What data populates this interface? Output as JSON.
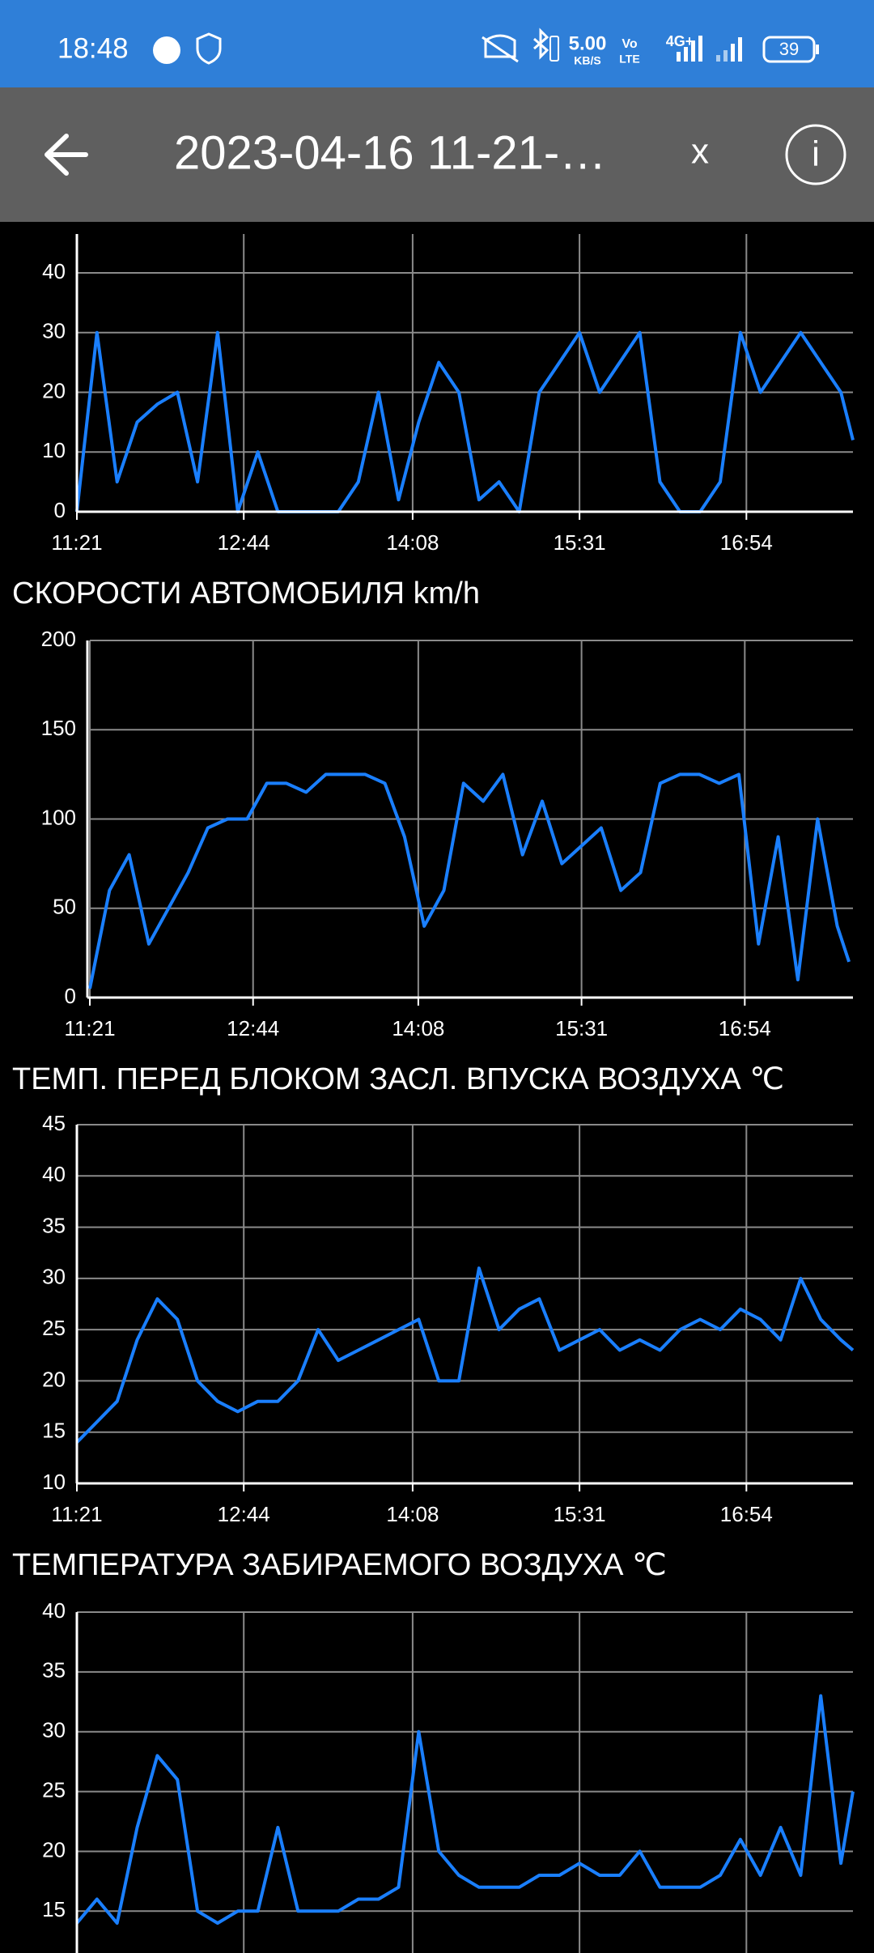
{
  "status_bar": {
    "time": "18:48",
    "speed": "5.00",
    "speed_unit": "KB/S",
    "volte_top": "Vo",
    "volte_bottom": "LTE",
    "network": "4G+",
    "battery": "39"
  },
  "toolbar": {
    "title": "2023-04-16 11-21-…",
    "close": "x",
    "info": "i"
  },
  "chart_data": [
    {
      "type": "line",
      "color": "#1a7fff",
      "x": [
        "11:21",
        "11:31",
        "11:41",
        "11:51",
        "12:01",
        "12:11",
        "12:21",
        "12:31",
        "12:41",
        "12:51",
        "13:01",
        "13:11",
        "13:21",
        "13:31",
        "13:41",
        "13:51",
        "14:01",
        "14:11",
        "14:21",
        "14:31",
        "14:41",
        "14:51",
        "15:01",
        "15:11",
        "15:21",
        "15:31",
        "15:41",
        "15:51",
        "16:01",
        "16:11",
        "16:21",
        "16:31",
        "16:41",
        "16:51",
        "17:01",
        "17:11",
        "17:21",
        "17:31",
        "17:41",
        "17:47"
      ],
      "values": [
        0,
        30,
        5,
        15,
        18,
        20,
        5,
        30,
        0,
        10,
        0,
        0,
        0,
        0,
        5,
        20,
        2,
        15,
        25,
        20,
        2,
        5,
        0,
        20,
        25,
        30,
        20,
        25,
        30,
        5,
        0,
        0,
        5,
        30,
        20,
        25,
        30,
        25,
        20,
        12
      ],
      "xlim": [
        "11:21",
        "17:47"
      ],
      "xticks": [
        "11:21",
        "12:44",
        "14:08",
        "15:31",
        "16:54"
      ],
      "ylim": [
        0,
        46.5
      ],
      "yticks": [
        0,
        10,
        20,
        30,
        40
      ]
    },
    {
      "type": "line",
      "title": "СКОРОСТИ АВТОМОБИЛЯ  km/h",
      "color": "#1a7fff",
      "x": [
        "11:21",
        "11:31",
        "11:41",
        "11:51",
        "12:01",
        "12:11",
        "12:21",
        "12:31",
        "12:41",
        "12:51",
        "13:01",
        "13:11",
        "13:21",
        "13:31",
        "13:41",
        "13:51",
        "14:01",
        "14:11",
        "14:21",
        "14:31",
        "14:41",
        "14:51",
        "15:01",
        "15:11",
        "15:21",
        "15:31",
        "15:41",
        "15:51",
        "16:01",
        "16:11",
        "16:21",
        "16:31",
        "16:41",
        "16:51",
        "17:01",
        "17:11",
        "17:21",
        "17:31",
        "17:41",
        "17:47"
      ],
      "values": [
        5,
        60,
        80,
        30,
        50,
        70,
        95,
        100,
        100,
        120,
        120,
        115,
        125,
        125,
        125,
        120,
        90,
        40,
        60,
        120,
        110,
        125,
        80,
        110,
        75,
        85,
        95,
        60,
        70,
        120,
        125,
        125,
        120,
        125,
        30,
        90,
        10,
        100,
        40,
        20
      ],
      "xlim": [
        "11:21",
        "17:49"
      ],
      "xticks": [
        "11:21",
        "12:44",
        "14:08",
        "15:31",
        "16:54"
      ],
      "ylim": [
        0,
        200
      ],
      "yticks": [
        0,
        50,
        100,
        150,
        200
      ]
    },
    {
      "type": "line",
      "title": "ТЕМП. ПЕРЕД БЛОКОМ ЗАСЛ. ВПУСКА ВОЗДУХА  ℃",
      "color": "#1a7fff",
      "x": [
        "11:21",
        "11:31",
        "11:41",
        "11:51",
        "12:01",
        "12:11",
        "12:21",
        "12:31",
        "12:41",
        "12:51",
        "13:01",
        "13:11",
        "13:21",
        "13:31",
        "13:41",
        "13:51",
        "14:01",
        "14:11",
        "14:21",
        "14:31",
        "14:41",
        "14:51",
        "15:01",
        "15:11",
        "15:21",
        "15:31",
        "15:41",
        "15:51",
        "16:01",
        "16:11",
        "16:21",
        "16:31",
        "16:41",
        "16:51",
        "17:01",
        "17:11",
        "17:21",
        "17:31",
        "17:41",
        "17:47"
      ],
      "values": [
        14,
        16,
        18,
        24,
        28,
        26,
        20,
        18,
        17,
        18,
        18,
        20,
        25,
        22,
        23,
        24,
        25,
        26,
        20,
        20,
        31,
        25,
        27,
        28,
        23,
        24,
        25,
        23,
        24,
        23,
        25,
        26,
        25,
        27,
        26,
        24,
        30,
        26,
        24,
        23
      ],
      "xlim": [
        "11:21",
        "17:47"
      ],
      "xticks": [
        "11:21",
        "12:44",
        "14:08",
        "15:31",
        "16:54"
      ],
      "ylim": [
        10,
        45
      ],
      "yticks": [
        10,
        15,
        20,
        25,
        30,
        35,
        40,
        45
      ]
    },
    {
      "type": "line",
      "title": "ТЕМПЕРАТУРА ЗАБИРАЕМОГО ВОЗДУХА  ℃",
      "color": "#1a7fff",
      "x": [
        "11:21",
        "11:31",
        "11:41",
        "11:51",
        "12:01",
        "12:11",
        "12:21",
        "12:31",
        "12:41",
        "12:51",
        "13:01",
        "13:11",
        "13:21",
        "13:31",
        "13:41",
        "13:51",
        "14:01",
        "14:11",
        "14:21",
        "14:31",
        "14:41",
        "14:51",
        "15:01",
        "15:11",
        "15:21",
        "15:31",
        "15:41",
        "15:51",
        "16:01",
        "16:11",
        "16:21",
        "16:31",
        "16:41",
        "16:51",
        "17:01",
        "17:11",
        "17:21",
        "17:31",
        "17:41",
        "17:47"
      ],
      "values": [
        14,
        16,
        14,
        22,
        28,
        26,
        15,
        14,
        15,
        15,
        22,
        15,
        15,
        15,
        16,
        16,
        17,
        30,
        20,
        18,
        17,
        17,
        17,
        18,
        18,
        19,
        18,
        18,
        20,
        17,
        17,
        17,
        18,
        21,
        18,
        22,
        18,
        33,
        19,
        25
      ],
      "xlim": [
        "11:21",
        "17:47"
      ],
      "xticks": [
        "11:21",
        "12:44",
        "14:08",
        "15:31",
        "16:54"
      ],
      "ylim": [
        11.5,
        40
      ],
      "yticks": [
        15,
        20,
        25,
        30,
        35,
        40
      ]
    }
  ]
}
